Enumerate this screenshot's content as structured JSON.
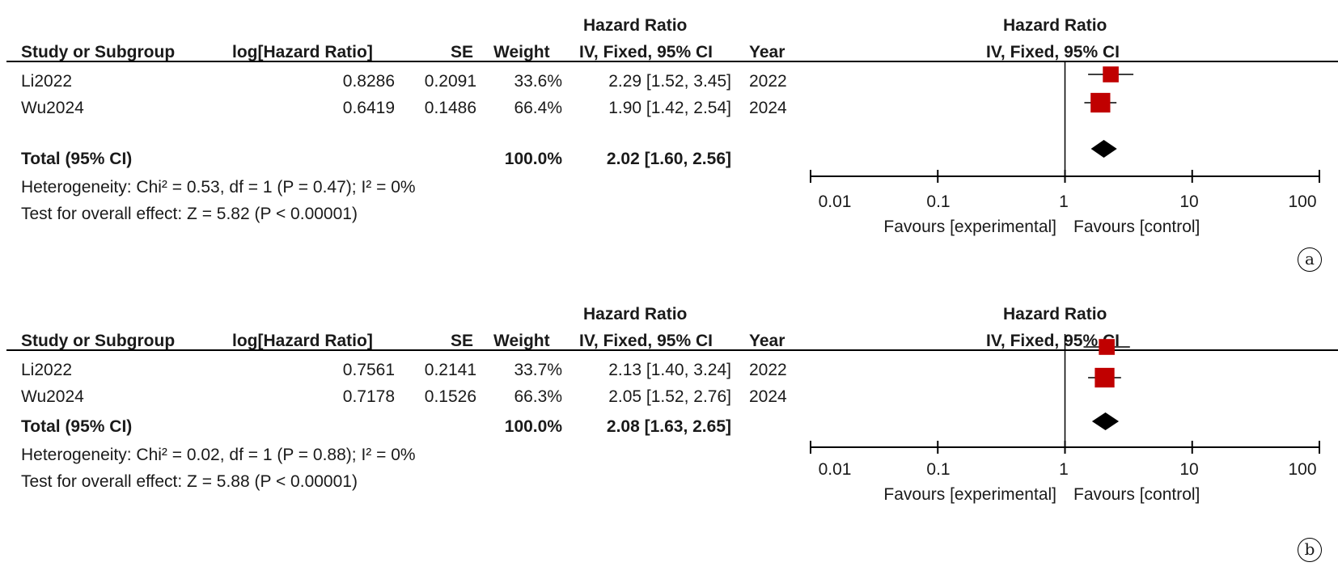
{
  "headers": {
    "hr_group": "Hazard Ratio",
    "study": "Study or Subgroup",
    "loghr": "log[Hazard Ratio]",
    "se": "SE",
    "weight": "Weight",
    "ci": "IV, Fixed, 95% CI",
    "year": "Year",
    "plot_group": "Hazard Ratio",
    "plot_method": "IV, Fixed, 95% CI"
  },
  "x_axis": {
    "ticks": [
      0.01,
      0.1,
      1,
      10,
      100
    ],
    "tick_labels": [
      "0.01",
      "0.1",
      "1",
      "10",
      "100"
    ],
    "favours_left": "Favours [experimental]",
    "favours_right": "Favours [control]",
    "scale": "log"
  },
  "colors": {
    "study_marker": "#c00000",
    "total_marker": "#000000"
  },
  "chart_data": [
    {
      "type": "forest",
      "panel_label": "a",
      "studies": [
        {
          "name": "Li2022",
          "loghr": "0.8286",
          "se": "0.2091",
          "weight": "33.6%",
          "ci_text": "2.29 [1.52, 3.45]",
          "year": "2022",
          "hr": 2.29,
          "lower": 1.52,
          "upper": 3.45,
          "w": 33.6
        },
        {
          "name": "Wu2024",
          "loghr": "0.6419",
          "se": "0.1486",
          "weight": "66.4%",
          "ci_text": "1.90 [1.42, 2.54]",
          "year": "2024",
          "hr": 1.9,
          "lower": 1.42,
          "upper": 2.54,
          "w": 66.4
        }
      ],
      "total": {
        "label": "Total (95% CI)",
        "weight": "100.0%",
        "ci_text": "2.02 [1.60, 2.56]",
        "hr": 2.02,
        "lower": 1.6,
        "upper": 2.56
      },
      "heterogeneity": "Heterogeneity: Chi² = 0.53, df = 1 (P = 0.47); I² = 0%",
      "overall_effect": "Test for overall effect: Z = 5.82 (P < 0.00001)"
    },
    {
      "type": "forest",
      "panel_label": "b",
      "studies": [
        {
          "name": "Li2022",
          "loghr": "0.7561",
          "se": "0.2141",
          "weight": "33.7%",
          "ci_text": "2.13 [1.40, 3.24]",
          "year": "2022",
          "hr": 2.13,
          "lower": 1.4,
          "upper": 3.24,
          "w": 33.7
        },
        {
          "name": "Wu2024",
          "loghr": "0.7178",
          "se": "0.1526",
          "weight": "66.3%",
          "ci_text": "2.05 [1.52, 2.76]",
          "year": "2024",
          "hr": 2.05,
          "lower": 1.52,
          "upper": 2.76,
          "w": 66.3
        }
      ],
      "total": {
        "label": "Total (95% CI)",
        "weight": "100.0%",
        "ci_text": "2.08 [1.63, 2.65]",
        "hr": 2.08,
        "lower": 1.63,
        "upper": 2.65
      },
      "heterogeneity": "Heterogeneity: Chi² = 0.02, df = 1 (P = 0.88); I² = 0%",
      "overall_effect": "Test for overall effect: Z = 5.88 (P < 0.00001)"
    }
  ]
}
